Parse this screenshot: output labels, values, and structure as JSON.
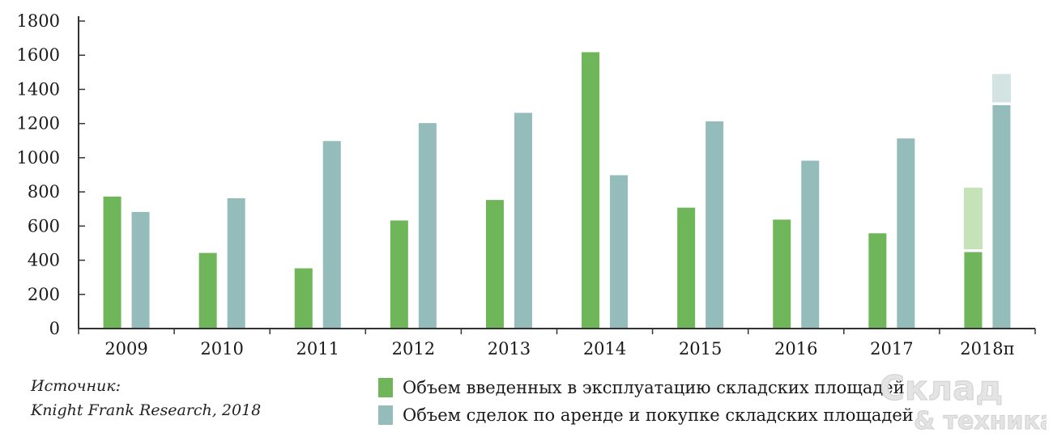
{
  "source": {
    "line1": "Источник:",
    "line2": "Knight Frank Research, 2018"
  },
  "legend": {
    "items": [
      {
        "label": "Объем введенных в эксплуатацию складских площадей",
        "color": "#6fb55a"
      },
      {
        "label": "Объем сделок по аренде и покупке складских площадей",
        "color": "#93bcbb"
      }
    ]
  },
  "colors": {
    "green": "#6fb55a",
    "teal": "#93bcbb",
    "green_forecast": "#c6e2b8",
    "teal_forecast": "#d3e3e2"
  },
  "watermark": {
    "text1": "Склад",
    "text2": "& техника"
  },
  "chart_data": {
    "type": "bar",
    "categories": [
      "2009",
      "2010",
      "2011",
      "2012",
      "2013",
      "2014",
      "2015",
      "2016",
      "2017",
      "2018п"
    ],
    "series": [
      {
        "name": "Объем введенных в эксплуатацию складских площадей",
        "values": [
          775,
          445,
          355,
          635,
          755,
          1620,
          710,
          640,
          560,
          450
        ],
        "forecast_upper": [
          null,
          null,
          null,
          null,
          null,
          null,
          null,
          null,
          null,
          825
        ]
      },
      {
        "name": "Объем сделок по аренде и покупке складских площадей",
        "values": [
          685,
          765,
          1100,
          1205,
          1265,
          900,
          1215,
          985,
          1115,
          1310
        ],
        "forecast_upper": [
          null,
          null,
          null,
          null,
          null,
          null,
          null,
          null,
          null,
          1490
        ]
      }
    ],
    "ylim": [
      0,
      1800
    ],
    "yticks": [
      0,
      200,
      400,
      600,
      800,
      1000,
      1200,
      1400,
      1600,
      1800
    ],
    "grid": false,
    "legend_position": "bottom"
  }
}
